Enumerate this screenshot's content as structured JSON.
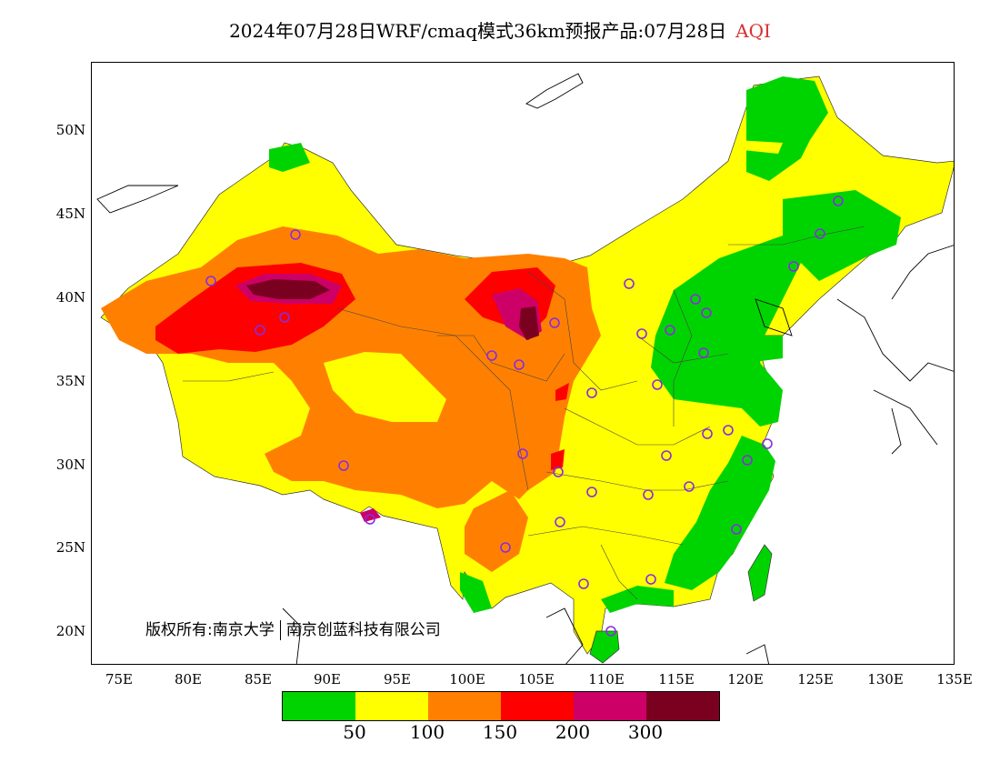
{
  "title": {
    "main": "2024年07月28日WRF/cmaq模式36km预报产品:07月28日",
    "variable": "AQI",
    "variable_color": "#d93030"
  },
  "axes": {
    "lat_labels": [
      "50N",
      "45N",
      "40N",
      "35N",
      "30N",
      "25N",
      "20N"
    ],
    "lon_labels": [
      "75E",
      "80E",
      "85E",
      "90E",
      "95E",
      "100E",
      "105E",
      "110E",
      "115E",
      "120E",
      "125E",
      "130E",
      "135E"
    ]
  },
  "legend": {
    "colors": [
      "#00d400",
      "#ffff00",
      "#ff8000",
      "#ff0000",
      "#cc0066",
      "#7a0020"
    ],
    "ticks": [
      "50",
      "100",
      "150",
      "200",
      "300"
    ]
  },
  "copyright": {
    "left": "版权所有:南京大学",
    "right": "南京创蓝科技有限公司"
  },
  "colors": {
    "good": "#00d400",
    "moderate": "#ffff00",
    "usg": "#ff8000",
    "unhealthy": "#ff0000",
    "very_unhealthy": "#cc0066",
    "hazardous": "#7a0020",
    "station_marker": "#8a2be2"
  }
}
